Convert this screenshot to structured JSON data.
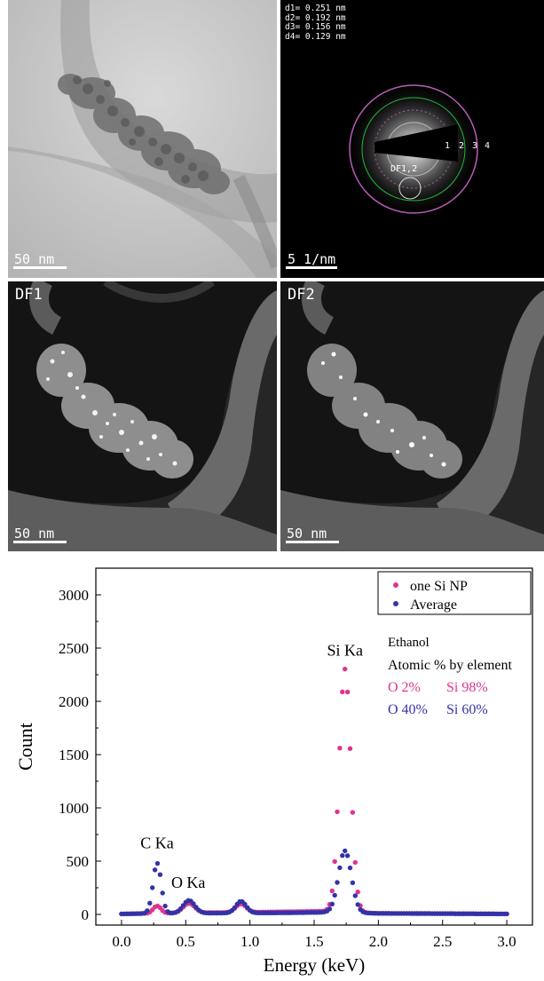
{
  "panels": {
    "tem": {
      "scale_bar": "50 nm"
    },
    "saed": {
      "d_spacings": [
        "d1= 0.251 nm",
        "d2= 0.192 nm",
        "d3= 0.156 nm",
        "d4= 0.129 nm"
      ],
      "ring_labels": [
        "1",
        "2",
        "3",
        "4"
      ],
      "aperture_label": "DF1,2",
      "scale_bar": "5 1/nm"
    },
    "df1": {
      "label": "DF1",
      "scale_bar": "50 nm"
    },
    "df2": {
      "label": "DF2",
      "scale_bar": "50 nm"
    }
  },
  "chart_data": {
    "type": "scatter",
    "xlabel": "Energy (keV)",
    "ylabel": "Count",
    "xlim": [
      -0.2,
      3.2
    ],
    "ylim": [
      -100,
      3250
    ],
    "x_ticks": [
      0.0,
      0.5,
      1.0,
      1.5,
      2.0,
      2.5,
      3.0
    ],
    "x_tick_labels": [
      "0.0",
      "0.5",
      "1.0",
      "1.5",
      "2.0",
      "2.5",
      "3.0"
    ],
    "y_ticks": [
      0,
      500,
      1000,
      1500,
      2000,
      2500,
      3000
    ],
    "y_tick_labels": [
      "0",
      "500",
      "1000",
      "1500",
      "2000",
      "2500",
      "3000"
    ],
    "legend_position": "top-right",
    "series": [
      {
        "name": "one Si NP",
        "color": "#e0338f",
        "peaks": [
          {
            "e": 0.277,
            "h": 70,
            "w": 0.03
          },
          {
            "e": 0.525,
            "h": 90,
            "w": 0.045
          },
          {
            "e": 0.93,
            "h": 80,
            "w": 0.04
          },
          {
            "e": 1.74,
            "h": 2280,
            "w": 0.045
          }
        ],
        "baseline": [
          {
            "e": 0.0,
            "v": 5
          },
          {
            "e": 0.25,
            "v": 10
          },
          {
            "e": 1.3,
            "v": 25
          },
          {
            "e": 1.6,
            "v": 30
          },
          {
            "e": 2.0,
            "v": 10
          },
          {
            "e": 3.0,
            "v": 5
          }
        ]
      },
      {
        "name": "Average",
        "color": "#3333a8",
        "peaks": [
          {
            "e": 0.277,
            "h": 470,
            "w": 0.032
          },
          {
            "e": 0.525,
            "h": 120,
            "w": 0.045
          },
          {
            "e": 0.93,
            "h": 110,
            "w": 0.04
          },
          {
            "e": 1.74,
            "h": 580,
            "w": 0.05
          }
        ],
        "baseline": [
          {
            "e": 0.0,
            "v": 5
          },
          {
            "e": 0.25,
            "v": 10
          },
          {
            "e": 1.3,
            "v": 15
          },
          {
            "e": 1.6,
            "v": 20
          },
          {
            "e": 2.0,
            "v": 10
          },
          {
            "e": 3.0,
            "v": 5
          }
        ]
      }
    ],
    "annotations": [
      {
        "text": "C Ka",
        "x": 0.277,
        "y": 620
      },
      {
        "text": "O Ka",
        "x": 0.52,
        "y": 250
      },
      {
        "text": "Si Ka",
        "x": 1.74,
        "y": 2430
      }
    ],
    "info_box": {
      "title": "Ethanol",
      "subtitle": "Atomic % by element",
      "rows": [
        {
          "o": "O 2%",
          "si": "Si 98%",
          "color": "#e0338f"
        },
        {
          "o": "O 40%",
          "si": "Si 60%",
          "color": "#3333a8"
        }
      ]
    }
  }
}
